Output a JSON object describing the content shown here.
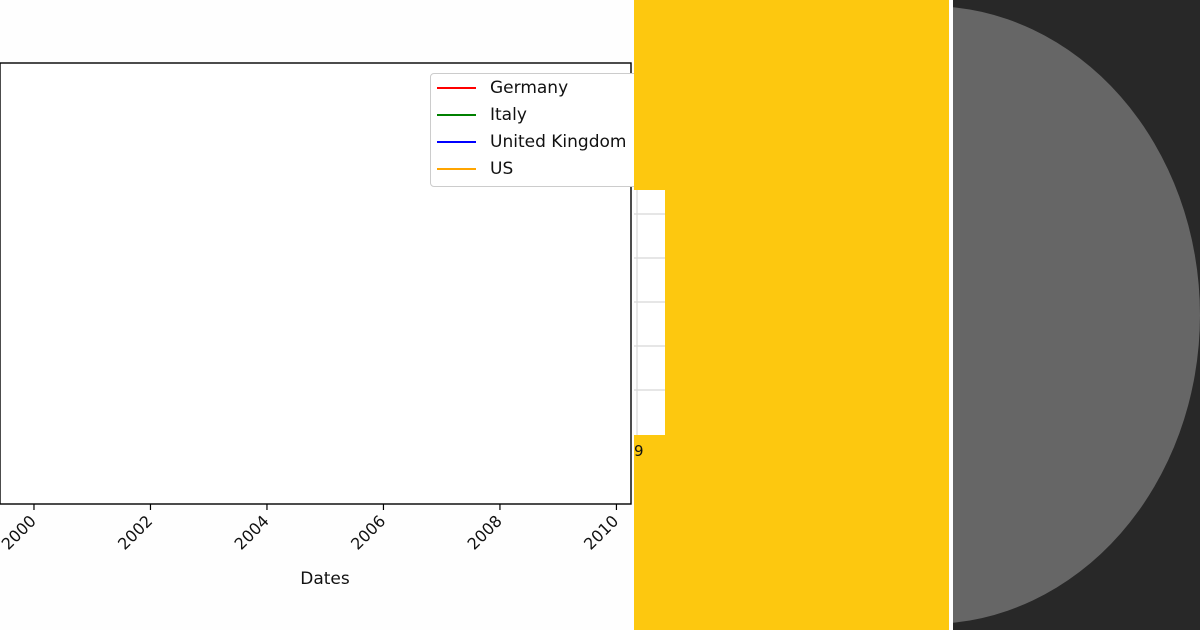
{
  "chart_data": {
    "type": "line",
    "title": "",
    "xlabel": "Dates",
    "ylabel": "",
    "x_ticks": [
      "2000",
      "2002",
      "2004",
      "2006",
      "2008",
      "2010"
    ],
    "xlim": [
      "1999-06",
      "2010-04"
    ],
    "series": [
      {
        "name": "Germany",
        "color": "#ff0000",
        "values": []
      },
      {
        "name": "Italy",
        "color": "#008000",
        "values": []
      },
      {
        "name": "United Kingdom",
        "color": "#0000ff",
        "values": []
      },
      {
        "name": "US",
        "color": "#ffa500",
        "values": []
      }
    ],
    "legend_position": "top-right",
    "grid": false
  },
  "inset": {
    "tick_label": "9"
  },
  "colors": {
    "yellow_panel": "#fdc80f",
    "dark_panel": "#282828",
    "circle": "#666666"
  }
}
